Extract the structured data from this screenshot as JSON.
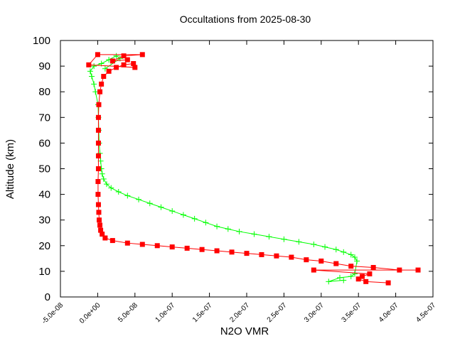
{
  "chart_data": {
    "type": "scatter",
    "title": "Occultations from 2025-08-30",
    "xlabel": "N2O VMR",
    "ylabel": "Altitude (km)",
    "xlim": [
      -5e-08,
      4.5e-07
    ],
    "ylim": [
      0,
      100
    ],
    "grid": false,
    "legend": "none",
    "x_ticks": [
      -5e-08,
      0,
      5e-08,
      1e-07,
      1.5e-07,
      2e-07,
      2.5e-07,
      3e-07,
      3.5e-07,
      4e-07,
      4.5e-07
    ],
    "x_tick_labels": [
      "-5.0e-08",
      "0.0e+00",
      "5.0e-08",
      "1.0e-07",
      "1.5e-07",
      "2.0e-07",
      "2.5e-07",
      "3.0e-07",
      "3.5e-07",
      "4.0e-07",
      "4.5e-07"
    ],
    "y_ticks": [
      0,
      10,
      20,
      30,
      40,
      50,
      60,
      70,
      80,
      90,
      100
    ],
    "y_tick_labels": [
      "0",
      "10",
      "20",
      "30",
      "40",
      "50",
      "60",
      "70",
      "80",
      "90",
      "100"
    ],
    "series": [
      {
        "name": "green",
        "color": "#00ff00",
        "marker": "plus",
        "points": [
          [
            3.3e-07,
            6.5
          ],
          [
            3.1e-07,
            6.0
          ],
          [
            3.25e-07,
            7.5
          ],
          [
            3.4e-07,
            8.0
          ],
          [
            3.45e-07,
            9.0
          ],
          [
            3.48e-07,
            14.0
          ],
          [
            3.45e-07,
            15.5
          ],
          [
            3.4e-07,
            16.5
          ],
          [
            3.3e-07,
            17.5
          ],
          [
            3.2e-07,
            18.5
          ],
          [
            3.05e-07,
            19.5
          ],
          [
            2.9e-07,
            20.5
          ],
          [
            2.7e-07,
            21.5
          ],
          [
            2.5e-07,
            22.5
          ],
          [
            2.3e-07,
            23.5
          ],
          [
            2.1e-07,
            24.5
          ],
          [
            1.9e-07,
            25.5
          ],
          [
            1.75e-07,
            26.5
          ],
          [
            1.6e-07,
            27.5
          ],
          [
            1.45e-07,
            29.0
          ],
          [
            1.3e-07,
            30.5
          ],
          [
            1.15e-07,
            32.0
          ],
          [
            1e-07,
            33.5
          ],
          [
            8.5e-08,
            35.0
          ],
          [
            7e-08,
            36.5
          ],
          [
            5.5e-08,
            38.0
          ],
          [
            4e-08,
            39.5
          ],
          [
            2.8e-08,
            41.0
          ],
          [
            1.8e-08,
            42.5
          ],
          [
            1.2e-08,
            44.0
          ],
          [
            8e-09,
            46.0
          ],
          [
            6e-09,
            48.0
          ],
          [
            5e-09,
            50.0
          ],
          [
            4e-09,
            53.0
          ],
          [
            3e-09,
            56.0
          ],
          [
            2e-09,
            60.0
          ],
          [
            1.5e-09,
            65.0
          ],
          [
            1e-09,
            70.0
          ],
          [
            5e-10,
            75.0
          ],
          [
            -3e-09,
            80.0
          ],
          [
            -5e-09,
            83.0
          ],
          [
            -8e-09,
            86.0
          ],
          [
            -1e-08,
            88.0
          ],
          [
            -5e-09,
            90.0
          ],
          [
            5e-09,
            91.0
          ],
          [
            1.5e-08,
            92.5
          ],
          [
            2.5e-08,
            94.0
          ],
          [
            3e-08,
            93.0
          ],
          [
            1e-08,
            89.0
          ]
        ]
      },
      {
        "name": "red",
        "color": "#ff0000",
        "marker": "square",
        "points": [
          [
            3.9e-07,
            5.5
          ],
          [
            3.6e-07,
            6.0
          ],
          [
            3.5e-07,
            7.0
          ],
          [
            3.55e-07,
            8.0
          ],
          [
            3.65e-07,
            9.0
          ],
          [
            2.9e-07,
            10.5
          ],
          [
            4.3e-07,
            10.5
          ],
          [
            4.05e-07,
            10.5
          ],
          [
            3.7e-07,
            11.5
          ],
          [
            3.4e-07,
            12.0
          ],
          [
            3.2e-07,
            13.0
          ],
          [
            3e-07,
            14.0
          ],
          [
            2.8e-07,
            14.5
          ],
          [
            2.6e-07,
            15.5
          ],
          [
            2.4e-07,
            16.0
          ],
          [
            2.2e-07,
            16.5
          ],
          [
            2e-07,
            17.0
          ],
          [
            1.8e-07,
            17.5
          ],
          [
            1.6e-07,
            18.0
          ],
          [
            1.4e-07,
            18.5
          ],
          [
            1.2e-07,
            19.0
          ],
          [
            1e-07,
            19.5
          ],
          [
            8e-08,
            20.0
          ],
          [
            6e-08,
            20.5
          ],
          [
            4e-08,
            21.0
          ],
          [
            2e-08,
            22.0
          ],
          [
            1e-08,
            23.0
          ],
          [
            6e-09,
            24.5
          ],
          [
            4e-09,
            26.0
          ],
          [
            3e-09,
            28.0
          ],
          [
            2e-09,
            30.0
          ],
          [
            1.5e-09,
            33.0
          ],
          [
            1e-09,
            36.0
          ],
          [
            5e-10,
            40.0
          ],
          [
            5e-10,
            45.0
          ],
          [
            1e-09,
            50.0
          ],
          [
            1e-09,
            55.0
          ],
          [
            1e-09,
            60.0
          ],
          [
            1e-09,
            65.0
          ],
          [
            1e-09,
            70.0
          ],
          [
            1.5e-09,
            75.0
          ],
          [
            3e-09,
            80.0
          ],
          [
            5e-09,
            83.0
          ],
          [
            8e-09,
            86.0
          ],
          [
            1.5e-08,
            88.0
          ],
          [
            2.5e-08,
            89.5
          ],
          [
            3.5e-08,
            90.5
          ],
          [
            4.8e-08,
            91.0
          ],
          [
            5e-08,
            89.5
          ],
          [
            -1.2e-08,
            90.5
          ],
          [
            0.0,
            94.5
          ],
          [
            6e-08,
            94.5
          ],
          [
            3.5e-08,
            94.0
          ],
          [
            2e-08,
            92.0
          ],
          [
            4e-08,
            92.5
          ]
        ]
      }
    ]
  }
}
